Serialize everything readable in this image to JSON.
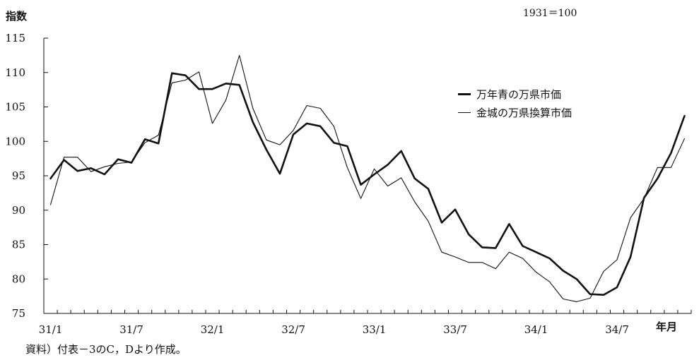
{
  "chart_data": {
    "type": "line",
    "ylabel": "指数",
    "base_note": "1931＝100",
    "xlabel": "年月",
    "x_ticks": [
      "31/1",
      "31/7",
      "32/1",
      "32/7",
      "33/1",
      "33/7",
      "34/1",
      "34/7"
    ],
    "ylim": [
      75,
      115
    ],
    "y_ticks": [
      75,
      80,
      85,
      90,
      95,
      100,
      105,
      110,
      115
    ],
    "grid": false,
    "legend_placement": "right",
    "series": [
      {
        "name": "万年青の万県市価",
        "values": [
          94.6,
          97.3,
          95.7,
          96.1,
          95.2,
          97.4,
          96.9,
          100.3,
          99.7,
          109.9,
          109.6,
          107.6,
          107.6,
          108.4,
          108.2,
          102.8,
          98.8,
          95.3,
          101.0,
          102.6,
          102.2,
          99.8,
          99.3,
          93.7,
          95.2,
          96.6,
          98.6,
          94.6,
          93.1,
          88.2,
          90.1,
          86.5,
          84.6,
          84.5,
          88.0,
          84.8,
          83.9,
          83.0,
          81.2,
          80.0,
          77.8,
          77.7,
          78.8,
          83.2,
          91.8,
          94.6,
          98.3,
          103.7
        ]
      },
      {
        "name": "金城の万県換算市価",
        "values": [
          90.8,
          97.7,
          97.7,
          95.6,
          96.3,
          96.8,
          97.0,
          99.8,
          100.9,
          108.5,
          108.9,
          110.1,
          102.6,
          106.0,
          112.5,
          104.8,
          100.2,
          99.5,
          101.6,
          105.2,
          104.8,
          102.2,
          96.2,
          91.7,
          96.0,
          93.5,
          94.7,
          91.2,
          88.4,
          83.9,
          83.2,
          82.4,
          82.4,
          81.5,
          83.9,
          83.0,
          81.0,
          79.6,
          77.1,
          76.7,
          77.2,
          81.1,
          82.8,
          88.9,
          91.7,
          96.2,
          96.2,
          100.4
        ]
      }
    ]
  },
  "source": "資料）付表－3のC，Dより作成。"
}
